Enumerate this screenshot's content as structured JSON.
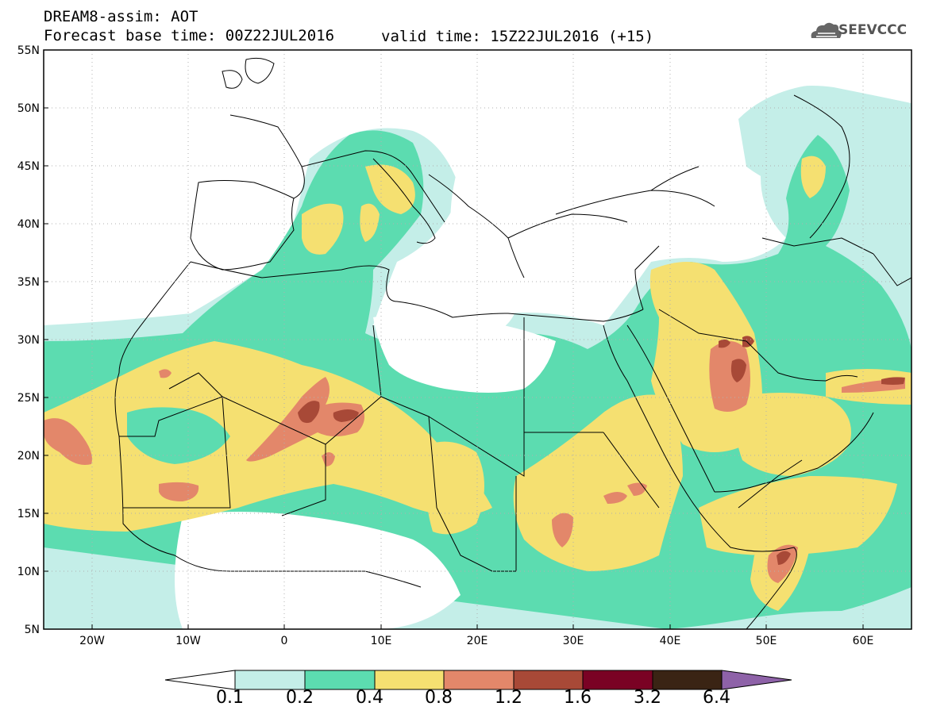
{
  "header": {
    "title": "DREAM8-assim: AOT",
    "base_time": "Forecast base time: 00Z22JUL2016",
    "valid_time": "valid time: 15Z22JUL2016 (+15)",
    "logo_text": "SEEVCCC"
  },
  "map": {
    "lon_range": [
      -25,
      65
    ],
    "lat_range": [
      5,
      55
    ],
    "lat_labels": [
      "5N",
      "10N",
      "15N",
      "20N",
      "25N",
      "30N",
      "35N",
      "40N",
      "45N",
      "50N",
      "55N"
    ],
    "lon_labels": [
      "20W",
      "10W",
      "0",
      "10E",
      "20E",
      "30E",
      "40E",
      "50E",
      "60E"
    ]
  },
  "colorbar": {
    "labels": [
      "0.1",
      "0.2",
      "0.4",
      "0.8",
      "1.2",
      "1.6",
      "3.2",
      "6.4"
    ],
    "colors": [
      "#ffffff",
      "#c4eee8",
      "#5cdcb0",
      "#f5e071",
      "#e3876a",
      "#a84937",
      "#7a0224",
      "#3a2414",
      "#8e62a8"
    ]
  },
  "colors": {
    "c1": "#c4eee8",
    "c2": "#5cdcb0",
    "c3": "#f5e071",
    "c4": "#e3876a",
    "c5": "#a84937"
  }
}
